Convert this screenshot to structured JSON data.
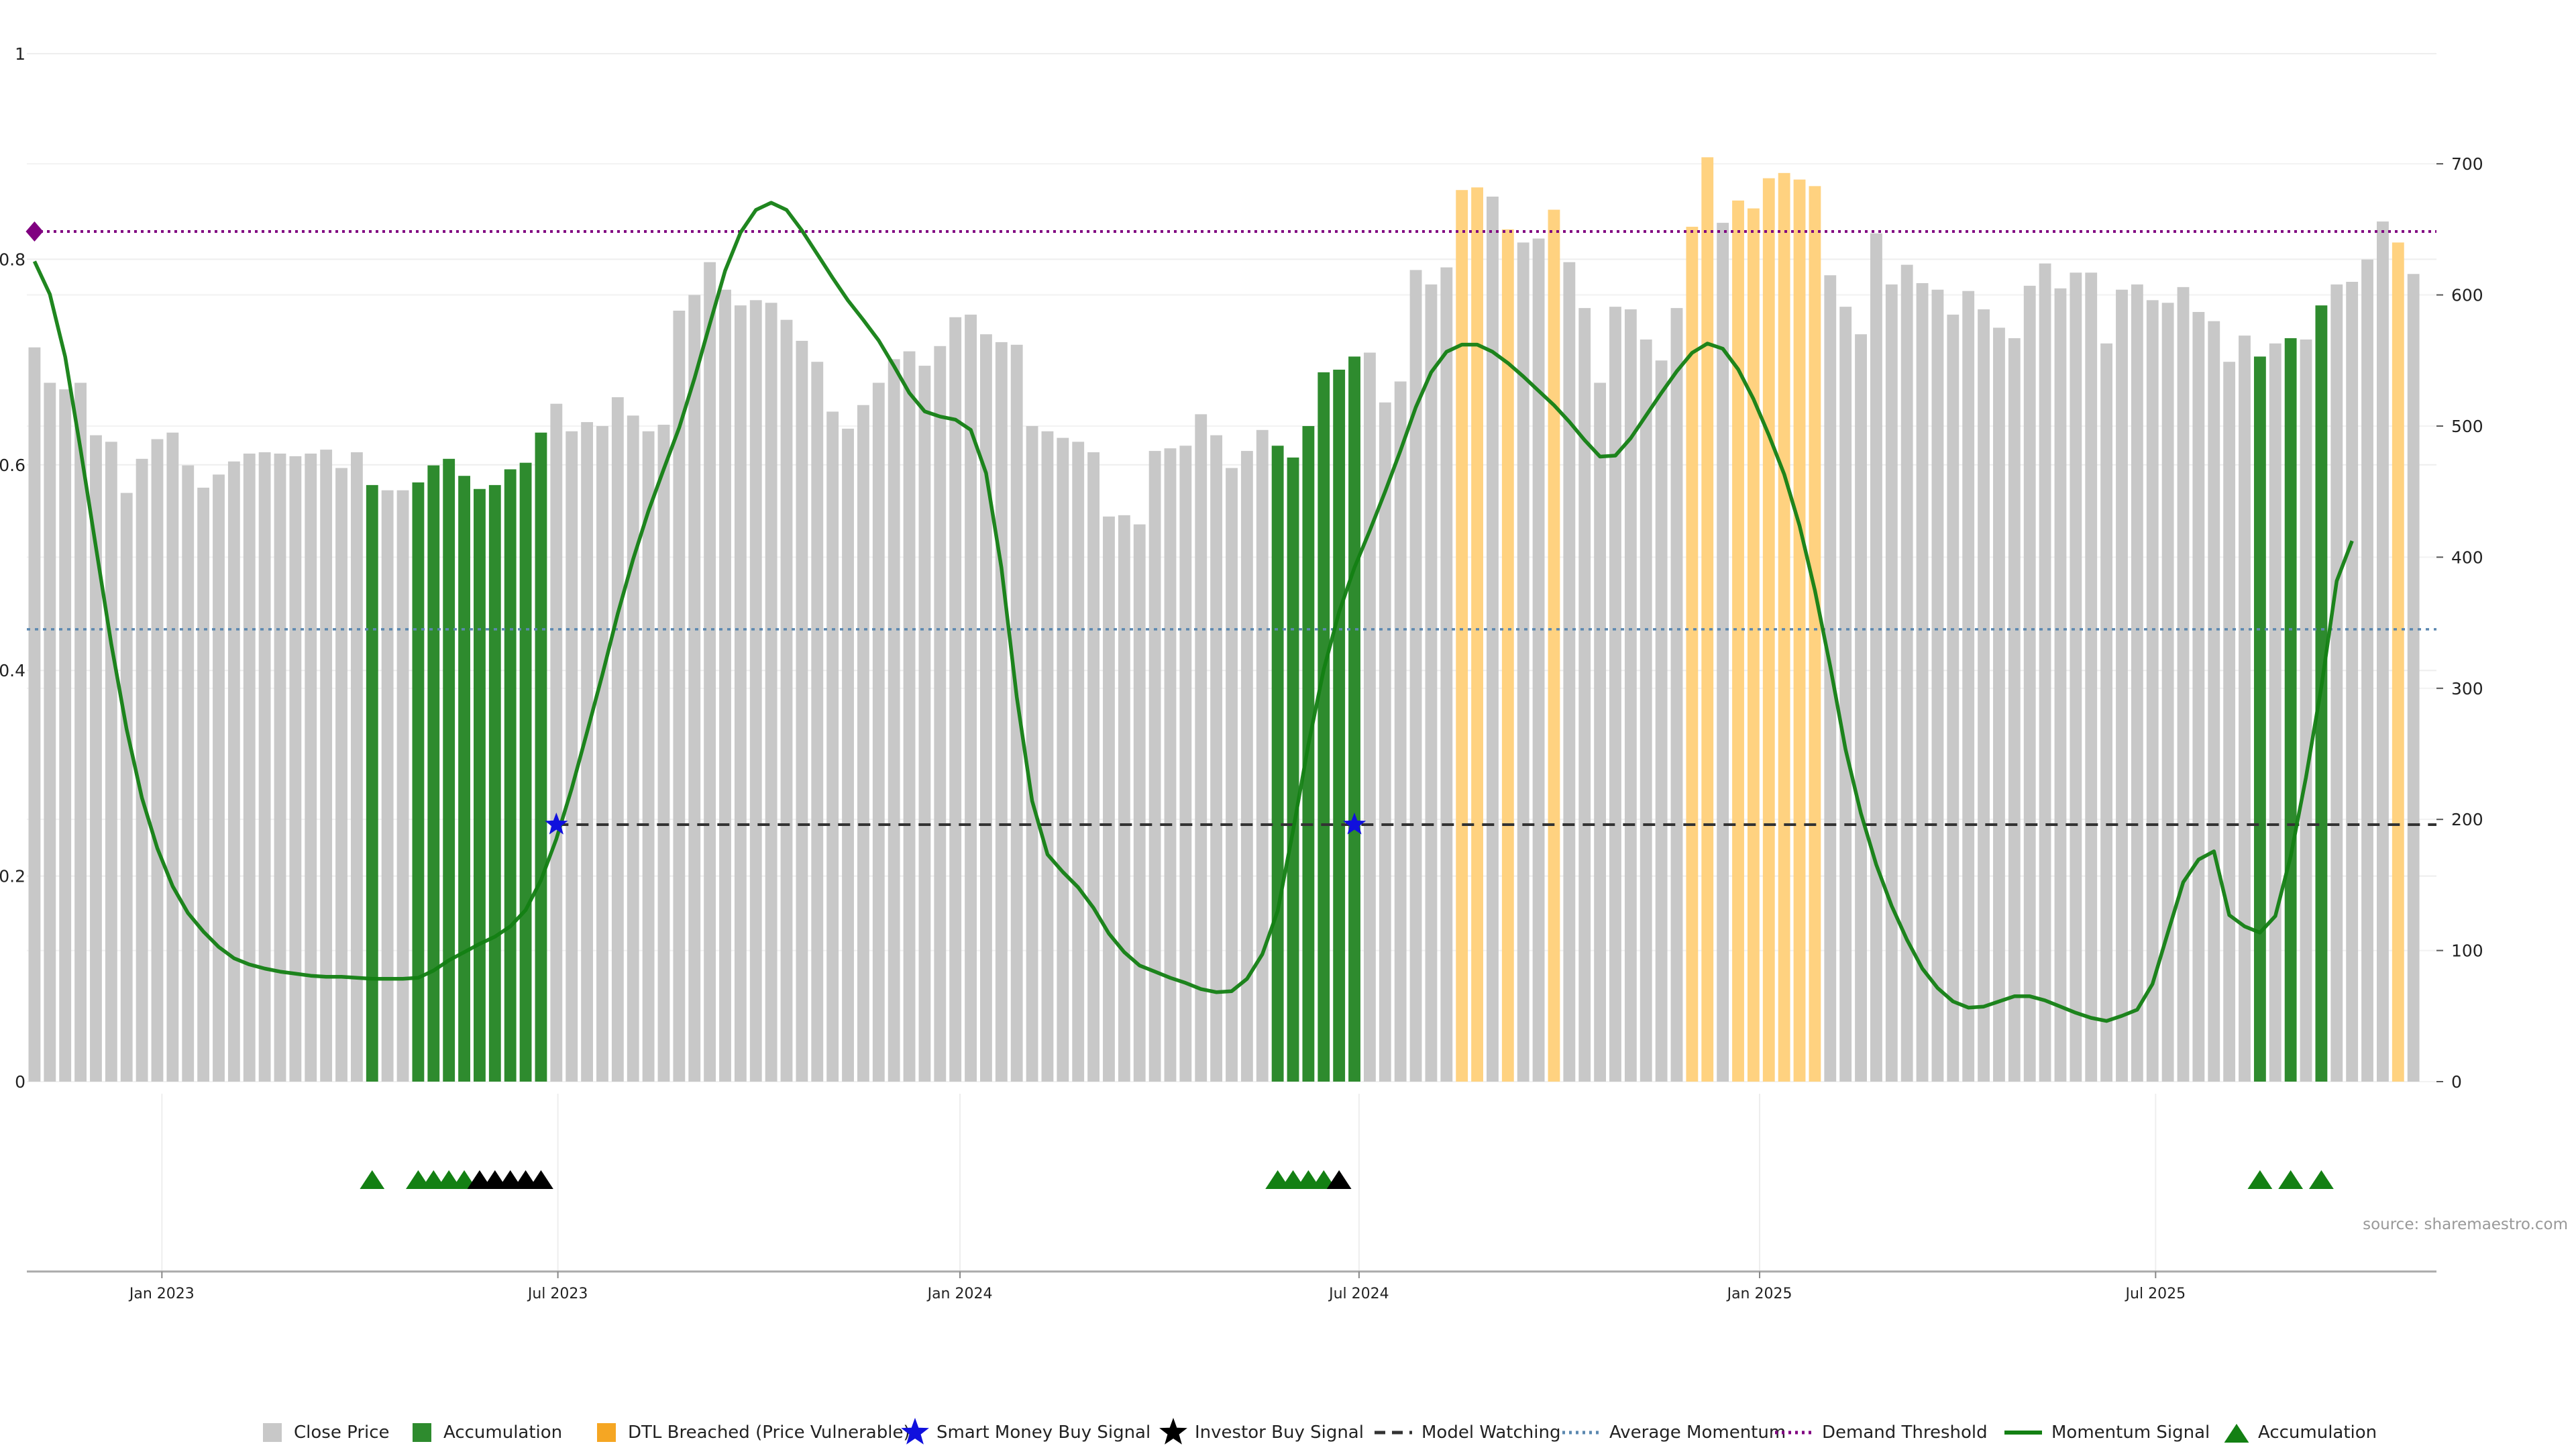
{
  "chart_data": {
    "type": "bar",
    "title": "",
    "left_axis": {
      "ticks": [
        0,
        0.2,
        0.4,
        0.6,
        0.8,
        1
      ],
      "tick_labels": [
        "0",
        "0.2",
        "0.4",
        "0.6",
        "0.8",
        "1"
      ],
      "ylim": [
        0,
        1
      ]
    },
    "right_axis": {
      "ticks": [
        0,
        100,
        200,
        300,
        400,
        500,
        600,
        700
      ],
      "tick_labels": [
        "0",
        "100",
        "200",
        "300",
        "400",
        "500",
        "600",
        "700"
      ],
      "ylim": [
        0,
        784
      ]
    },
    "x_axis": {
      "tick_labels": [
        "Jan 2023",
        "Jul 2023",
        "Jan 2024",
        "Jul 2024",
        "Jan 2025",
        "Jul 2025"
      ],
      "tick_positions": [
        8.3,
        34.1,
        60.3,
        86.3,
        112.4,
        138.2
      ],
      "xlim": [
        0,
        157
      ]
    },
    "grid": true,
    "legend_position": "bottom",
    "source_text": "source: sharemaestro.com",
    "colors": {
      "close": "#c8c8c8",
      "accumulation": "#2e8b2e",
      "dtl": "#ffd280",
      "momentum": "#138013",
      "demand": "#800080",
      "average": "#5b88b0",
      "watching": "#333333",
      "smart_money": "#1010dd",
      "investor": "#000000",
      "triangle_green": "#138013"
    },
    "close_price": [
      560,
      533,
      528,
      533,
      493,
      488,
      449,
      475,
      490,
      495,
      470,
      453,
      463,
      473,
      479,
      480,
      479,
      477,
      479,
      482,
      468,
      480,
      455,
      451,
      451,
      457,
      470,
      475,
      462,
      452,
      455,
      467,
      472,
      495,
      517,
      496,
      503,
      500,
      522,
      508,
      496,
      501,
      588,
      600,
      625,
      604,
      592,
      596,
      594,
      581,
      565,
      549,
      511,
      498,
      516,
      533,
      551,
      557,
      546,
      561,
      583,
      585,
      570,
      564,
      562,
      500,
      496,
      491,
      488,
      480,
      431,
      432,
      425,
      481,
      483,
      485,
      509,
      493,
      468,
      481,
      497,
      485,
      476,
      500,
      541,
      543,
      553,
      556,
      518,
      534,
      619,
      608,
      621,
      680,
      682,
      675,
      650,
      640,
      643,
      665,
      625,
      590,
      533,
      591,
      589,
      566,
      550,
      590,
      652,
      705,
      655,
      672,
      666,
      689,
      693,
      688,
      683,
      615,
      591,
      570,
      647,
      608,
      623,
      609,
      604,
      585,
      603,
      589,
      575,
      567,
      607,
      624,
      605,
      617,
      617,
      563,
      604,
      608,
      596,
      594,
      606,
      587,
      580,
      549,
      569,
      553,
      563,
      567,
      566,
      592,
      608,
      610,
      627,
      656,
      640,
      616
    ],
    "accumulation_indices": [
      22,
      25,
      26,
      27,
      28,
      29,
      30,
      31,
      32,
      33,
      81,
      82,
      83,
      84,
      85,
      86,
      145,
      147,
      149
    ],
    "dtl_indices": [
      93,
      94,
      96,
      99,
      108,
      109,
      111,
      112,
      113,
      114,
      115,
      116,
      154
    ],
    "momentum_signal": [
      0.798,
      0.766,
      0.705,
      0.615,
      0.52,
      0.426,
      0.343,
      0.276,
      0.227,
      0.19,
      0.164,
      0.146,
      0.131,
      0.12,
      0.114,
      0.11,
      0.107,
      0.105,
      0.103,
      0.102,
      0.102,
      0.101,
      0.1,
      0.1,
      0.1,
      0.101,
      0.108,
      0.118,
      0.126,
      0.134,
      0.141,
      0.151,
      0.167,
      0.196,
      0.236,
      0.285,
      0.34,
      0.396,
      0.455,
      0.508,
      0.555,
      0.596,
      0.636,
      0.684,
      0.737,
      0.789,
      0.826,
      0.848,
      0.855,
      0.848,
      0.828,
      0.805,
      0.782,
      0.76,
      0.741,
      0.721,
      0.696,
      0.67,
      0.652,
      0.647,
      0.644,
      0.634,
      0.592,
      0.5,
      0.374,
      0.273,
      0.221,
      0.204,
      0.189,
      0.169,
      0.144,
      0.126,
      0.113,
      0.107,
      0.101,
      0.096,
      0.09,
      0.087,
      0.088,
      0.1,
      0.124,
      0.166,
      0.244,
      0.328,
      0.401,
      0.457,
      0.5,
      0.536,
      0.574,
      0.614,
      0.656,
      0.69,
      0.71,
      0.717,
      0.717,
      0.71,
      0.699,
      0.686,
      0.672,
      0.658,
      0.642,
      0.624,
      0.608,
      0.609,
      0.626,
      0.648,
      0.67,
      0.691,
      0.709,
      0.718,
      0.713,
      0.693,
      0.664,
      0.629,
      0.591,
      0.541,
      0.478,
      0.404,
      0.323,
      0.261,
      0.211,
      0.171,
      0.138,
      0.11,
      0.091,
      0.078,
      0.072,
      0.073,
      0.078,
      0.083,
      0.083,
      0.079,
      0.073,
      0.067,
      0.062,
      0.059,
      0.064,
      0.07,
      0.095,
      0.145,
      0.194,
      0.216,
      0.224,
      0.162,
      0.151,
      0.145,
      0.161,
      0.219,
      0.296,
      0.384,
      0.487,
      0.526
    ],
    "demand_threshold": 0.827,
    "average_momentum": 0.44,
    "model_watching": {
      "value": 0.25,
      "start_index": 34
    },
    "smart_money_buy_signals": [
      {
        "index": 34,
        "value": 0.25
      },
      {
        "index": 86,
        "value": 0.25
      }
    ],
    "demand_marker": {
      "index": 0,
      "value": 0.827
    },
    "accumulation_triangles": [
      22,
      25,
      26,
      27,
      28,
      81,
      82,
      83,
      84,
      145,
      147,
      149
    ],
    "investor_triangles": [
      29,
      30,
      31,
      32,
      33,
      85
    ],
    "legend": [
      {
        "label": "Close Price",
        "kind": "square",
        "color": "#c8c8c8"
      },
      {
        "label": "Accumulation",
        "kind": "square",
        "color": "#2e8b2e"
      },
      {
        "label": "DTL Breached (Price Vulnerable)",
        "kind": "square",
        "color": "#f5a623"
      },
      {
        "label": "Smart Money Buy Signal",
        "kind": "star",
        "color": "#1010dd"
      },
      {
        "label": "Investor Buy Signal",
        "kind": "star",
        "color": "#000000"
      },
      {
        "label": "Model Watching",
        "kind": "dash",
        "color": "#333333"
      },
      {
        "label": "Average Momentum",
        "kind": "dot",
        "color": "#5b88b0"
      },
      {
        "label": "Demand Threshold",
        "kind": "dotpurple",
        "color": "#800080"
      },
      {
        "label": "Momentum Signal",
        "kind": "line",
        "color": "#138013"
      },
      {
        "label": "Accumulation",
        "kind": "triangle",
        "color": "#138013"
      }
    ]
  }
}
